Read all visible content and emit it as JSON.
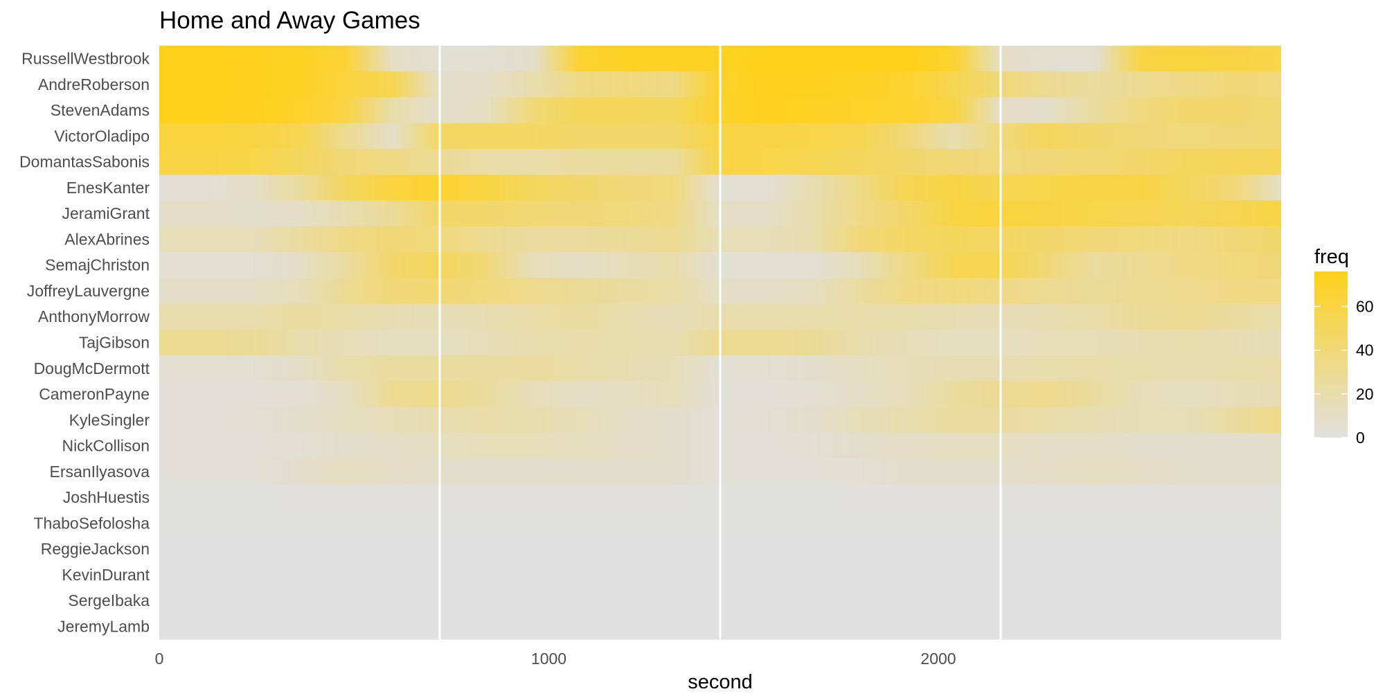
{
  "chart_data": {
    "type": "heatmap",
    "title": "Home and Away Games",
    "xlabel": "second",
    "ylabel": "",
    "xlim": [
      0,
      2880
    ],
    "x_ticks": [
      0,
      1000,
      2000
    ],
    "x_tick_labels": [
      "0",
      "1000",
      "2000"
    ],
    "vlines": [
      720,
      1440,
      2160
    ],
    "x": [
      0,
      120,
      240,
      360,
      480,
      600,
      720,
      840,
      960,
      1080,
      1200,
      1320,
      1440,
      1560,
      1680,
      1800,
      1920,
      2040,
      2160,
      2280,
      2400,
      2520,
      2640,
      2760,
      2880
    ],
    "rows": [
      {
        "name": "RussellWestbrook",
        "values": [
          76,
          76,
          75,
          72,
          65,
          10,
          5,
          5,
          8,
          68,
          72,
          72,
          72,
          76,
          76,
          76,
          76,
          68,
          10,
          6,
          6,
          60,
          62,
          60,
          58
        ]
      },
      {
        "name": "AndreRoberson",
        "values": [
          76,
          76,
          75,
          72,
          62,
          55,
          8,
          10,
          20,
          35,
          38,
          35,
          70,
          75,
          74,
          72,
          68,
          55,
          40,
          30,
          25,
          30,
          35,
          40,
          38
        ]
      },
      {
        "name": "StevenAdams",
        "values": [
          76,
          76,
          74,
          70,
          60,
          20,
          8,
          12,
          40,
          52,
          52,
          50,
          70,
          74,
          72,
          70,
          68,
          60,
          10,
          8,
          25,
          38,
          45,
          45,
          42
        ]
      },
      {
        "name": "VictorOladipo",
        "values": [
          62,
          62,
          60,
          55,
          30,
          10,
          48,
          48,
          48,
          45,
          45,
          45,
          60,
          60,
          58,
          55,
          40,
          18,
          40,
          50,
          45,
          40,
          38,
          40,
          42
        ]
      },
      {
        "name": "DomantasSabonis",
        "values": [
          60,
          60,
          58,
          50,
          40,
          35,
          28,
          22,
          22,
          25,
          25,
          25,
          60,
          58,
          55,
          50,
          45,
          40,
          38,
          40,
          42,
          45,
          50,
          52,
          52
        ]
      },
      {
        "name": "EnesKanter",
        "values": [
          3,
          5,
          10,
          25,
          50,
          62,
          68,
          60,
          50,
          45,
          40,
          38,
          5,
          5,
          18,
          35,
          55,
          60,
          55,
          58,
          60,
          60,
          50,
          40,
          10
        ]
      },
      {
        "name": "JeramiGrant",
        "values": [
          10,
          10,
          8,
          10,
          18,
          28,
          45,
          45,
          42,
          40,
          38,
          35,
          10,
          10,
          20,
          35,
          45,
          60,
          62,
          60,
          58,
          55,
          52,
          55,
          60
        ]
      },
      {
        "name": "AlexAbrines",
        "values": [
          15,
          15,
          15,
          25,
          35,
          40,
          38,
          30,
          25,
          25,
          28,
          30,
          15,
          15,
          20,
          40,
          48,
          50,
          48,
          45,
          40,
          38,
          35,
          40,
          45
        ]
      },
      {
        "name": "SemajChriston",
        "values": [
          5,
          5,
          5,
          10,
          25,
          45,
          50,
          40,
          15,
          10,
          15,
          20,
          5,
          5,
          5,
          15,
          35,
          55,
          55,
          40,
          25,
          30,
          35,
          38,
          40
        ]
      },
      {
        "name": "JoffreyLauvergne",
        "values": [
          10,
          10,
          10,
          15,
          30,
          40,
          42,
          38,
          32,
          28,
          25,
          22,
          10,
          10,
          12,
          25,
          35,
          38,
          35,
          30,
          28,
          30,
          32,
          35,
          35
        ]
      },
      {
        "name": "AnthonyMorrow",
        "values": [
          20,
          20,
          20,
          25,
          22,
          18,
          15,
          18,
          22,
          25,
          20,
          15,
          20,
          20,
          20,
          22,
          20,
          18,
          15,
          18,
          22,
          28,
          30,
          25,
          20
        ]
      },
      {
        "name": "TajGibson",
        "values": [
          30,
          30,
          28,
          20,
          15,
          12,
          12,
          15,
          20,
          22,
          20,
          18,
          30,
          30,
          28,
          20,
          15,
          12,
          12,
          15,
          15,
          18,
          20,
          18,
          15
        ]
      },
      {
        "name": "DougMcDermott",
        "values": [
          5,
          5,
          5,
          10,
          20,
          25,
          25,
          25,
          25,
          22,
          18,
          15,
          5,
          5,
          8,
          12,
          15,
          18,
          18,
          20,
          22,
          20,
          18,
          20,
          22
        ]
      },
      {
        "name": "CameronPayne",
        "values": [
          3,
          3,
          3,
          5,
          12,
          30,
          32,
          25,
          15,
          10,
          12,
          15,
          3,
          3,
          5,
          10,
          15,
          25,
          30,
          32,
          25,
          15,
          12,
          15,
          18
        ]
      },
      {
        "name": "KyleSingler",
        "values": [
          3,
          3,
          5,
          8,
          12,
          15,
          18,
          22,
          20,
          15,
          10,
          8,
          3,
          5,
          8,
          15,
          20,
          25,
          25,
          22,
          18,
          15,
          15,
          25,
          35
        ]
      },
      {
        "name": "NickCollison",
        "values": [
          3,
          3,
          3,
          5,
          8,
          10,
          12,
          15,
          15,
          12,
          10,
          8,
          3,
          3,
          5,
          8,
          10,
          12,
          12,
          10,
          10,
          8,
          8,
          8,
          8
        ]
      },
      {
        "name": "ErsanIlyasova",
        "values": [
          3,
          3,
          3,
          8,
          12,
          10,
          8,
          8,
          8,
          8,
          8,
          8,
          3,
          3,
          3,
          5,
          8,
          8,
          8,
          10,
          12,
          10,
          8,
          8,
          8
        ]
      },
      {
        "name": "JoshHuestis",
        "values": [
          1,
          1,
          1,
          2,
          2,
          2,
          2,
          2,
          2,
          2,
          2,
          2,
          1,
          1,
          1,
          2,
          2,
          2,
          2,
          2,
          2,
          2,
          2,
          2,
          2
        ]
      },
      {
        "name": "ThaboSefolosha",
        "values": [
          1,
          1,
          1,
          1,
          1,
          1,
          1,
          1,
          1,
          1,
          1,
          1,
          1,
          1,
          1,
          1,
          1,
          1,
          1,
          1,
          1,
          1,
          1,
          1,
          1
        ]
      },
      {
        "name": "ReggieJackson",
        "values": [
          0,
          0,
          0,
          0,
          0,
          0,
          0,
          0,
          0,
          0,
          0,
          0,
          0,
          0,
          0,
          0,
          0,
          0,
          0,
          0,
          0,
          0,
          0,
          0,
          0
        ]
      },
      {
        "name": "KevinDurant",
        "values": [
          0,
          0,
          0,
          0,
          0,
          0,
          0,
          0,
          0,
          0,
          0,
          0,
          0,
          0,
          0,
          0,
          0,
          0,
          0,
          0,
          0,
          0,
          0,
          0,
          0
        ]
      },
      {
        "name": "SergeIbaka",
        "values": [
          0,
          0,
          0,
          0,
          0,
          0,
          0,
          0,
          0,
          0,
          0,
          0,
          0,
          0,
          0,
          0,
          0,
          0,
          0,
          0,
          0,
          0,
          0,
          0,
          0
        ]
      },
      {
        "name": "JeremyLamb",
        "values": [
          0,
          0,
          0,
          0,
          0,
          0,
          0,
          0,
          0,
          0,
          0,
          0,
          0,
          0,
          0,
          0,
          0,
          0,
          0,
          0,
          0,
          0,
          0,
          0,
          0
        ]
      }
    ],
    "legend": {
      "title": "freq",
      "range": [
        0,
        76
      ],
      "ticks": [
        0,
        20,
        40,
        60
      ],
      "tick_labels": [
        "0",
        "20",
        "40",
        "60"
      ],
      "low_color": "#e0e0e0",
      "high_color": "#ffd11a",
      "position": "right"
    },
    "grid": true,
    "grid_color": "#ffffff"
  }
}
